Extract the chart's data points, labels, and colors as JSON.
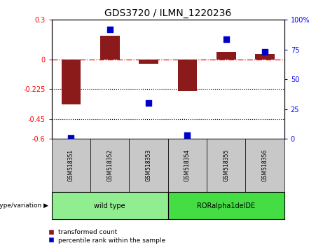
{
  "title": "GDS3720 / ILMN_1220236",
  "samples": [
    "GSM518351",
    "GSM518352",
    "GSM518353",
    "GSM518354",
    "GSM518355",
    "GSM518356"
  ],
  "transformed_count": [
    -0.34,
    0.18,
    -0.03,
    -0.24,
    0.06,
    0.04
  ],
  "percentile_rank": [
    1,
    92,
    30,
    3,
    84,
    73
  ],
  "ylim_left": [
    -0.6,
    0.3
  ],
  "ylim_right": [
    0,
    100
  ],
  "yticks_left": [
    0.3,
    0.0,
    -0.225,
    -0.45,
    -0.6
  ],
  "ytick_labels_left": [
    "0.3",
    "0",
    "-0.225",
    "-0.45",
    "-0.6"
  ],
  "yticks_right": [
    100,
    75,
    50,
    25,
    0
  ],
  "ytick_labels_right": [
    "100%",
    "75",
    "50",
    "25",
    "0"
  ],
  "hline_y": 0.0,
  "dotted_lines": [
    -0.225,
    -0.45
  ],
  "bar_color": "#8B1A1A",
  "point_color": "#0000CC",
  "group_labels": [
    "wild type",
    "RORalpha1delDE"
  ],
  "group_ranges": [
    [
      0,
      2
    ],
    [
      3,
      5
    ]
  ],
  "group_colors": [
    "#90EE90",
    "#44DD44"
  ],
  "group_row_label": "genotype/variation",
  "legend_label_red": "transformed count",
  "legend_label_blue": "percentile rank within the sample",
  "bar_width": 0.5,
  "point_size": 30,
  "sample_box_color": "#C8C8C8"
}
